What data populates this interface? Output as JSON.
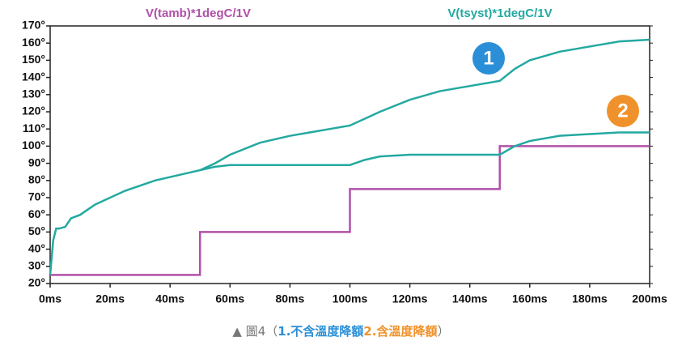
{
  "chart_data": {
    "type": "line",
    "xlim": [
      0,
      200
    ],
    "xticks": [
      {
        "value": 0,
        "label": "0ms"
      },
      {
        "value": 20,
        "label": "20ms"
      },
      {
        "value": 40,
        "label": "40ms"
      },
      {
        "value": 60,
        "label": "60ms"
      },
      {
        "value": 80,
        "label": "80ms"
      },
      {
        "value": 100,
        "label": "100ms"
      },
      {
        "value": 120,
        "label": "120ms"
      },
      {
        "value": 140,
        "label": "140ms"
      },
      {
        "value": 160,
        "label": "160ms"
      },
      {
        "value": 180,
        "label": "180ms"
      },
      {
        "value": 200,
        "label": "200ms"
      }
    ],
    "ylim": [
      20,
      170
    ],
    "yticks": [
      {
        "value": 20,
        "label": "20°"
      },
      {
        "value": 30,
        "label": "30°"
      },
      {
        "value": 40,
        "label": "40°"
      },
      {
        "value": 50,
        "label": "50°"
      },
      {
        "value": 60,
        "label": "60°"
      },
      {
        "value": 70,
        "label": "70°"
      },
      {
        "value": 80,
        "label": "80°"
      },
      {
        "value": 90,
        "label": "90°"
      },
      {
        "value": 100,
        "label": "100°"
      },
      {
        "value": 110,
        "label": "110°"
      },
      {
        "value": 120,
        "label": "120°"
      },
      {
        "value": 130,
        "label": "130°"
      },
      {
        "value": 140,
        "label": "140°"
      },
      {
        "value": 150,
        "label": "150°"
      },
      {
        "value": 160,
        "label": "160°"
      },
      {
        "value": 170,
        "label": "170°"
      }
    ],
    "grid": false,
    "series": [
      {
        "name": "V(tamb)*1degC/1V",
        "color": "#b150a8",
        "x": [
          0,
          50,
          50,
          100,
          100,
          150,
          150,
          200
        ],
        "values": [
          25,
          25,
          50,
          50,
          75,
          75,
          100,
          100
        ]
      },
      {
        "name": "V(tsyst)*1degC/1V",
        "color": "#23a9a0",
        "x": [
          0,
          1,
          2,
          3,
          5,
          7,
          10,
          15,
          20,
          25,
          30,
          35,
          40,
          45,
          50,
          55,
          60,
          70,
          80,
          90,
          100,
          105,
          110,
          120,
          130,
          140,
          150,
          155,
          160,
          170,
          180,
          190,
          200
        ],
        "values": [
          25,
          45,
          52,
          52,
          53,
          58,
          60,
          66,
          70,
          74,
          77,
          80,
          82,
          84,
          86,
          90,
          95,
          102,
          106,
          109,
          112,
          116,
          120,
          127,
          132,
          135,
          138,
          145,
          150,
          155,
          158,
          161,
          162
        ]
      },
      {
        "color": "#23a9a0",
        "x": [
          50,
          55,
          60,
          70,
          80,
          90,
          100,
          105,
          110,
          120,
          130,
          140,
          150,
          155,
          160,
          170,
          180,
          190,
          200
        ],
        "values": [
          86,
          88,
          89,
          89,
          89,
          89,
          89,
          92,
          94,
          95,
          95,
          95,
          95,
          100,
          103,
          106,
          107,
          108,
          108
        ]
      }
    ],
    "annotations": [
      {
        "text": "1",
        "color": "#2a8fd6"
      },
      {
        "text": "2",
        "color": "#f0922b"
      }
    ]
  },
  "caption": [
    {
      "text": "▲ 圖4（",
      "color": "#777777"
    },
    {
      "text": "1.不含溫度降額",
      "color": "#2a8fd6"
    },
    {
      "text": "2.含溫度降額",
      "color": "#f0922b"
    },
    {
      "text": "）",
      "color": "#777777"
    }
  ]
}
